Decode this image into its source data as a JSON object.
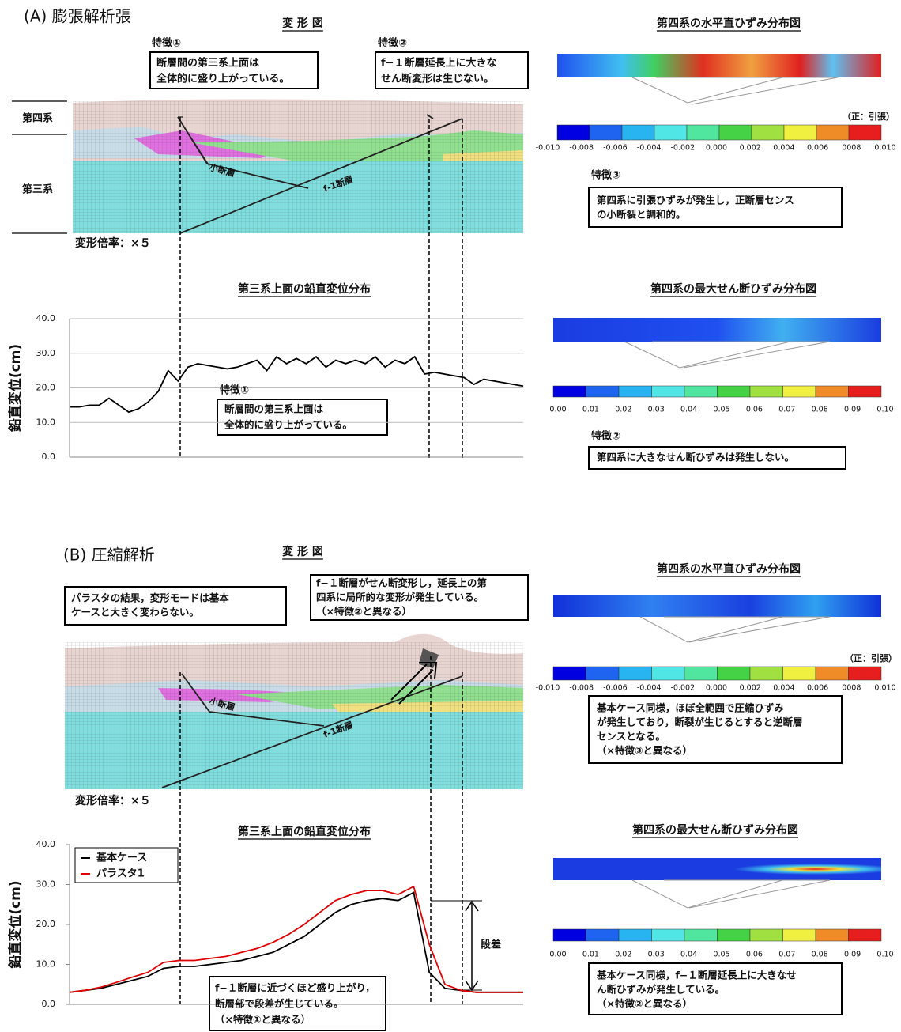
{
  "panel_a": {
    "label": "(A) 膨張解析張",
    "deformation": {
      "title": "変 形 図",
      "layers": [
        "第四系",
        "第三系"
      ],
      "faults": [
        "小断層",
        "f-1断層"
      ],
      "scale": "変形倍率：×５",
      "callouts": [
        {
          "heading": "特徴①",
          "lines": [
            "断層間の第三系上面は",
            "全体的に盛り上がっている。"
          ]
        },
        {
          "heading": "特徴②",
          "lines": [
            "f−１断層延長上に大きな",
            "せん断変形は生じない。"
          ]
        }
      ]
    },
    "strain_horizontal": {
      "title": "第四系の水平直ひずみ分布図",
      "sign_note": "（正：引張）",
      "ticks": [
        "-0.010",
        "-0.008",
        "-0.006",
        "-0.004",
        "-0.002",
        "0.000",
        "0.002",
        "0.004",
        "0.006",
        "0008",
        "0.010"
      ],
      "heading": "特徴③",
      "lines": [
        "第四系に引張ひずみが発生し，正断層センス",
        "の小断裂と調和的。"
      ]
    },
    "strain_shear": {
      "title": "第四系の最大せん断ひずみ分布図",
      "ticks": [
        "0.00",
        "0.01",
        "0.02",
        "0.03",
        "0.04",
        "0.05",
        "0.06",
        "0.07",
        "0.08",
        "0.09",
        "0.10"
      ],
      "heading": "特徴②",
      "lines": [
        "第四系に大きなせん断ひずみは発生しない。"
      ]
    }
  },
  "panel_b": {
    "label": "(B) 圧縮解析",
    "deformation": {
      "title": "変 形 図",
      "faults": [
        "小断層",
        "f-1断層"
      ],
      "scale": "変形倍率：×５",
      "callouts": [
        {
          "lines": [
            "パラスタの結果，変形モードは基本",
            "ケースと大きく変わらない。"
          ]
        },
        {
          "lines": [
            "f−１断層がせん断変形し，延長上の第",
            "四系に局所的な変形が発生している。",
            "（×特徴②と異なる）"
          ]
        }
      ]
    },
    "strain_horizontal": {
      "title": "第四系の水平直ひずみ分布図",
      "sign_note": "（正：引張）",
      "ticks": [
        "-0.010",
        "-0.008",
        "-0.006",
        "-0.004",
        "-0.002",
        "0.000",
        "0.002",
        "0.004",
        "0.006",
        "0008",
        "0.010"
      ],
      "lines": [
        "基本ケース同様，ほぼ全範囲で圧縮ひずみ",
        "が発生しており，断裂が生じるとすると逆断層",
        "センスとなる。",
        "（×特徴③と異なる）"
      ]
    },
    "strain_shear": {
      "title": "第四系の最大せん断ひずみ分布図",
      "ticks": [
        "0.00",
        "0.01",
        "0.02",
        "0.03",
        "0.04",
        "0.05",
        "0.06",
        "0.07",
        "0.08",
        "0.09",
        "0.10"
      ],
      "lines": [
        "基本ケース同様，f−１断層延長上に大きなせ",
        "ん断ひずみが発生している。",
        "（×特徴②と異なる）"
      ]
    }
  },
  "chart_data": [
    {
      "type": "line",
      "title": "第三系上面の鉛直変位分布",
      "y_label": "鉛直変位(cm)",
      "ylim": [
        0,
        40
      ],
      "yticks": [
        {
          "value": 0,
          "label": "0.0"
        },
        {
          "value": 10,
          "label": "10.0"
        },
        {
          "value": 20,
          "label": "20.0"
        },
        {
          "value": 30,
          "label": "30.0"
        },
        {
          "value": 40,
          "label": "40.0"
        }
      ],
      "grid": true,
      "color": "#000000",
      "values": [
        14.5,
        14.5,
        15,
        15,
        17,
        15,
        13,
        14,
        16,
        19,
        25,
        22,
        26,
        27,
        26.5,
        26,
        25.5,
        26,
        27,
        28,
        25,
        29,
        27,
        28.5,
        27,
        29,
        26,
        28,
        27,
        28,
        27,
        29,
        26,
        28,
        27,
        29,
        24,
        24.5,
        24,
        23.5,
        23,
        21,
        22.5,
        22,
        21.5,
        21,
        20.5
      ],
      "annotation": {
        "heading": "特徴①",
        "lines": [
          "断層間の第三系上面は",
          "全体的に盛り上がっている。"
        ]
      }
    },
    {
      "type": "line",
      "title": "第三系上面の鉛直変位分布",
      "y_label": "鉛直変位(cm)",
      "ylim": [
        0,
        40
      ],
      "yticks": [
        {
          "value": 0,
          "label": "0.0"
        },
        {
          "value": 10,
          "label": "10.0"
        },
        {
          "value": 20,
          "label": "20.0"
        },
        {
          "value": 30,
          "label": "30.0"
        },
        {
          "value": 40,
          "label": "40.0"
        }
      ],
      "grid": false,
      "legend": "top-left",
      "series": [
        {
          "name": "基本ケース",
          "color": "#000000",
          "values": [
            3,
            3.5,
            4,
            5,
            6,
            7,
            9,
            9.5,
            9.5,
            10,
            10.5,
            11,
            12,
            13,
            15,
            17,
            20,
            23,
            25,
            26,
            26.5,
            26,
            28,
            8,
            4,
            3.5,
            3,
            3,
            3,
            3
          ]
        },
        {
          "name": "パラスタ1",
          "color": "#e00000",
          "values": [
            3,
            3.5,
            4.3,
            5.5,
            6.8,
            8,
            10.5,
            11,
            11,
            11.5,
            12,
            13,
            14,
            15.5,
            17.5,
            20,
            23,
            26,
            27.5,
            28.5,
            28.5,
            27.5,
            29.5,
            15,
            5,
            3.5,
            3,
            3,
            3,
            3
          ]
        }
      ],
      "step_label": "段差",
      "annotation": {
        "lines": [
          "f−１断層に近づくほど盛り上がり，",
          "断層部で段差が生じている。",
          "（×特徴①と異なる）"
        ]
      }
    }
  ]
}
